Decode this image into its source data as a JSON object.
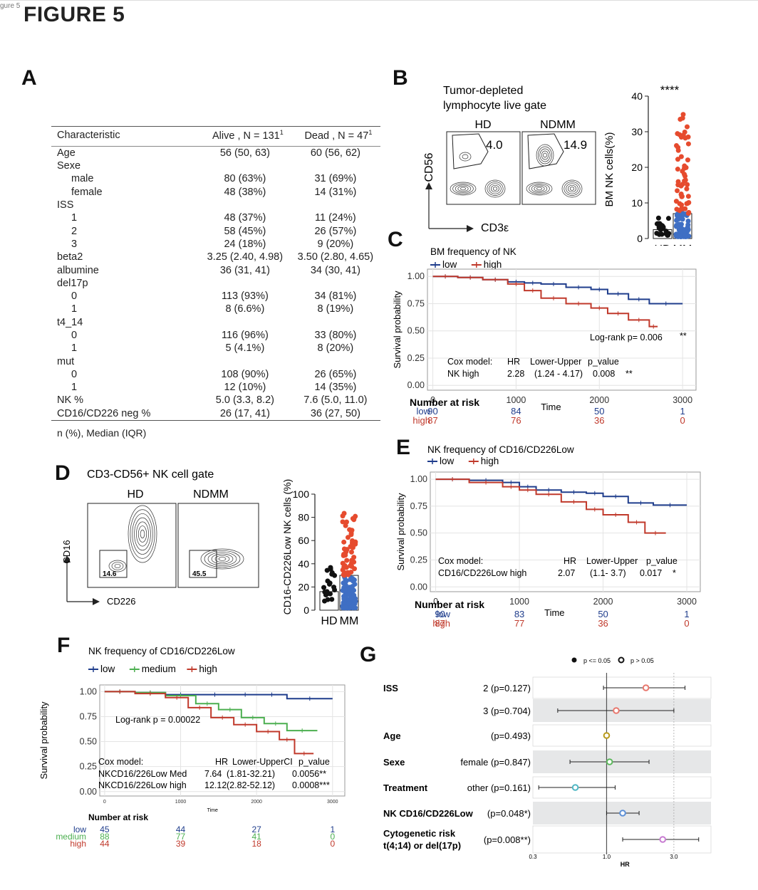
{
  "corner_label": "gure 5",
  "figure_title": "FIGURE 5",
  "panels": {
    "A": "A",
    "B": "B",
    "C": "C",
    "D": "D",
    "E": "E",
    "F": "F",
    "G": "G"
  },
  "table": {
    "headers": {
      "characteristic": "Characteristic",
      "alive": "Alive , N = 131",
      "dead": "Dead , N = 47",
      "sup": "1"
    },
    "rows": [
      {
        "label": "Age",
        "alive": "56 (50, 63)",
        "dead": "60 (56, 62)",
        "indent": false
      },
      {
        "label": "Sexe",
        "alive": "",
        "dead": "",
        "indent": false
      },
      {
        "label": "male",
        "alive": "80 (63%)",
        "dead": "31 (69%)",
        "indent": true
      },
      {
        "label": "female",
        "alive": "48 (38%)",
        "dead": "14 (31%)",
        "indent": true
      },
      {
        "label": "ISS",
        "alive": "",
        "dead": "",
        "indent": false
      },
      {
        "label": "1",
        "alive": "48 (37%)",
        "dead": "11 (24%)",
        "indent": true
      },
      {
        "label": "2",
        "alive": "58 (45%)",
        "dead": "26 (57%)",
        "indent": true
      },
      {
        "label": "3",
        "alive": "24 (18%)",
        "dead": "9 (20%)",
        "indent": true
      },
      {
        "label": "beta2",
        "alive": "3.25 (2.40, 4.98)",
        "dead": "3.50 (2.80, 4.65)",
        "indent": false
      },
      {
        "label": "albumine",
        "alive": "36 (31, 41)",
        "dead": "34 (30, 41)",
        "indent": false
      },
      {
        "label": "del17p",
        "alive": "",
        "dead": "",
        "indent": false
      },
      {
        "label": "0",
        "alive": "113 (93%)",
        "dead": "34 (81%)",
        "indent": true
      },
      {
        "label": "1",
        "alive": "8 (6.6%)",
        "dead": "8 (19%)",
        "indent": true
      },
      {
        "label": "t4_14",
        "alive": "",
        "dead": "",
        "indent": false
      },
      {
        "label": "0",
        "alive": "116 (96%)",
        "dead": "33 (80%)",
        "indent": true
      },
      {
        "label": "1",
        "alive": "5 (4.1%)",
        "dead": "8 (20%)",
        "indent": true
      },
      {
        "label": "mut",
        "alive": "",
        "dead": "",
        "indent": false
      },
      {
        "label": "0",
        "alive": "108 (90%)",
        "dead": "26 (65%)",
        "indent": true
      },
      {
        "label": "1",
        "alive": "12 (10%)",
        "dead": "14 (35%)",
        "indent": true
      },
      {
        "label": "NK %",
        "alive": "5.0 (3.3, 8.2)",
        "dead": "7.6 (5.0, 11.0)",
        "indent": false
      },
      {
        "label": "CD16/CD226 neg %",
        "alive": "26 (17, 41)",
        "dead": "36 (27, 50)",
        "indent": false
      }
    ],
    "footnote": "n (%), Median (IQR)"
  },
  "panelB": {
    "title_line1": "Tumor-depleted",
    "title_line2": "lymphocyte live gate",
    "hd_label": "HD",
    "ndmm_label": "NDMM",
    "hd_gate_value": "4.0",
    "ndmm_gate_value": "14.9",
    "yaxis": "CD56",
    "xaxis": "CD3ε",
    "dot_ylabel": "BM NK cells(%)",
    "significance": "****",
    "yticks": [
      "0",
      "10",
      "20",
      "30",
      "40"
    ],
    "groups": [
      "HD",
      "MM"
    ]
  },
  "panelC": {
    "title": "BM frequency of NK",
    "legend": [
      {
        "name": "low",
        "color": "#1f3d8c"
      },
      {
        "name": "high",
        "color": "#c0392b"
      }
    ],
    "ylabel": "Survival probability",
    "xlabel": "Time",
    "yticks": [
      "0.00",
      "0.25",
      "0.50",
      "0.75",
      "1.00"
    ],
    "xticks": [
      "0",
      "1000",
      "2000",
      "3000"
    ],
    "logrank": "Log-rank p= 0.006",
    "logrank_sig": "**",
    "cox_header": {
      "model": "Cox model:",
      "hr": "HR",
      "ci": "Lower-Upper",
      "p": "p_value"
    },
    "cox_row": {
      "label": "NK high",
      "hr": "2.28",
      "ci": "(1.24 - 4.17)",
      "p": "0.008",
      "sig": "**"
    },
    "risk_title": "Number at risk",
    "risk": [
      {
        "name": "low",
        "color": "#1f3d8c",
        "values": [
          "90",
          "84",
          "50",
          "1"
        ]
      },
      {
        "name": "high",
        "color": "#c0392b",
        "values": [
          "87",
          "76",
          "36",
          "0"
        ]
      }
    ]
  },
  "panelD": {
    "title": "CD3-CD56+ NK cell gate",
    "hd_label": "HD",
    "ndmm_label": "NDMM",
    "hd_gate_value": "14.6",
    "ndmm_gate_value": "45.5",
    "yaxis": "CD16",
    "xaxis": "CD226",
    "dot_ylabel": "CD16-CD226Low NK cells (%)",
    "yticks": [
      "0",
      "20",
      "40",
      "60",
      "80",
      "100"
    ],
    "groups": [
      "HD",
      "MM"
    ]
  },
  "panelE": {
    "title": "NK frequency of CD16/CD226Low",
    "legend": [
      {
        "name": "low",
        "color": "#1f3d8c"
      },
      {
        "name": "high",
        "color": "#c0392b"
      }
    ],
    "ylabel": "Survival probability",
    "xlabel": "Time",
    "yticks": [
      "0.00",
      "0.25",
      "0.50",
      "0.75",
      "1.00"
    ],
    "xticks": [
      "0",
      "1000",
      "2000",
      "3000"
    ],
    "cox_header": {
      "model": "Cox model:",
      "hr": "HR",
      "ci": "Lower-Upper",
      "p": "p_value"
    },
    "cox_row": {
      "label": "CD16/CD226Low high",
      "hr": "2.07",
      "ci": "(1.1- 3.7)",
      "p": "0.017",
      "sig": "*"
    },
    "risk_title": "Number at risk",
    "risk": [
      {
        "name": "low",
        "color": "#1f3d8c",
        "values": [
          "90",
          "83",
          "50",
          "1"
        ]
      },
      {
        "name": "high",
        "color": "#c0392b",
        "values": [
          "87",
          "77",
          "36",
          "0"
        ]
      }
    ]
  },
  "panelF": {
    "title": "NK frequency of CD16/CD226Low",
    "legend": [
      {
        "name": "low",
        "color": "#1f3d8c"
      },
      {
        "name": "medium",
        "color": "#4caf50"
      },
      {
        "name": "high",
        "color": "#c0392b"
      }
    ],
    "ylabel": "Survival probability",
    "xlabel": "Time",
    "yticks": [
      "0.00",
      "0.25",
      "0.50",
      "0.75",
      "1.00"
    ],
    "xticks": [
      "0",
      "1000",
      "2000",
      "3000"
    ],
    "logrank": "Log-rank p = 0.00022",
    "cox_header": {
      "model": "Cox model:",
      "hr": "HR",
      "ci": "Lower-UpperCI",
      "p": "p_value"
    },
    "cox_rows": [
      {
        "label": "NKCD16/226Low Med",
        "hr": "7.64",
        "ci": "(1.81-32.21)",
        "p": "0.0056**"
      },
      {
        "label": "NKCD16/226Low high",
        "hr": "12.12",
        "ci": "(2.82-52.12)",
        "p": "0.0008***"
      }
    ],
    "risk_title": "Number at risk",
    "risk": [
      {
        "name": "low",
        "color": "#1f3d8c",
        "values": [
          "45",
          "44",
          "27",
          "1"
        ]
      },
      {
        "name": "medium",
        "color": "#4caf50",
        "values": [
          "88",
          "77",
          "41",
          "0"
        ]
      },
      {
        "name": "high",
        "color": "#c0392b",
        "values": [
          "44",
          "39",
          "18",
          "0"
        ]
      }
    ]
  },
  "panelG": {
    "legend_sig": "p <= 0.05",
    "legend_ns": "p > 0.05",
    "xlabel": "HR",
    "xticks": [
      "0.3",
      "1.0",
      "3.0"
    ],
    "rows": [
      {
        "group": "ISS",
        "level": "2 (p=0.127)",
        "hr": 1.9,
        "lo": 0.95,
        "hi": 3.6,
        "color": "#e8776d",
        "shade": false
      },
      {
        "group": "",
        "level": "3 (p=0.704)",
        "hr": 1.17,
        "lo": 0.45,
        "hi": 3.0,
        "color": "#e8776d",
        "shade": true
      },
      {
        "group": "Age",
        "level": "(p=0.493)",
        "hr": 1.0,
        "lo": 0.98,
        "hi": 1.03,
        "color": "#b89a1b",
        "shade": false
      },
      {
        "group": "Sexe",
        "level": "female (p=0.847)",
        "hr": 1.05,
        "lo": 0.55,
        "hi": 2.0,
        "color": "#5cb85c",
        "shade": true
      },
      {
        "group": "Treatment",
        "level": "other (p=0.161)",
        "hr": 0.6,
        "lo": 0.33,
        "hi": 1.15,
        "color": "#4fb7c4",
        "shade": false
      },
      {
        "group": "NK CD16/CD226Low",
        "level": "(p=0.048*)",
        "hr": 1.3,
        "lo": 1.0,
        "hi": 1.7,
        "color": "#5b8fd6",
        "shade": true
      },
      {
        "group": "Cytogenetic risk\nt(4;14) or del(17p)",
        "level": "(p=0.008**)",
        "hr": 2.5,
        "lo": 1.3,
        "hi": 4.5,
        "color": "#c77bd1",
        "shade": false
      }
    ]
  },
  "chart_data": [
    {
      "type": "line",
      "title": "BM frequency of NK",
      "xlabel": "Time",
      "ylabel": "Survival probability",
      "xlim": [
        0,
        3000
      ],
      "ylim": [
        0,
        1
      ],
      "series": [
        {
          "name": "low",
          "x": [
            0,
            300,
            600,
            900,
            1100,
            1300,
            1600,
            1900,
            2100,
            2350,
            2600,
            3000
          ],
          "values": [
            1,
            0.99,
            0.97,
            0.95,
            0.94,
            0.93,
            0.9,
            0.88,
            0.84,
            0.79,
            0.75,
            0.75
          ]
        },
        {
          "name": "high",
          "x": [
            0,
            300,
            600,
            900,
            1100,
            1300,
            1600,
            1900,
            2100,
            2350,
            2600,
            2700
          ],
          "values": [
            1,
            0.99,
            0.97,
            0.93,
            0.87,
            0.8,
            0.75,
            0.71,
            0.66,
            0.6,
            0.54,
            0.54
          ]
        }
      ]
    },
    {
      "type": "line",
      "title": "NK frequency of CD16/CD226Low",
      "xlabel": "Time",
      "ylabel": "Survival probability",
      "xlim": [
        0,
        3000
      ],
      "ylim": [
        0,
        1
      ],
      "series": [
        {
          "name": "low",
          "x": [
            0,
            400,
            800,
            1000,
            1200,
            1500,
            1800,
            2000,
            2300,
            2600,
            3000
          ],
          "values": [
            1,
            0.99,
            0.97,
            0.93,
            0.9,
            0.88,
            0.87,
            0.84,
            0.78,
            0.76,
            0.76
          ]
        },
        {
          "name": "high",
          "x": [
            0,
            400,
            800,
            1000,
            1200,
            1500,
            1800,
            2000,
            2300,
            2500,
            2750
          ],
          "values": [
            1,
            0.97,
            0.93,
            0.9,
            0.86,
            0.79,
            0.72,
            0.67,
            0.6,
            0.5,
            0.5
          ]
        }
      ]
    },
    {
      "type": "line",
      "title": "NK frequency of CD16/CD226Low",
      "xlabel": "Time",
      "ylabel": "Survival probability",
      "xlim": [
        0,
        3000
      ],
      "ylim": [
        0,
        1
      ],
      "series": [
        {
          "name": "low",
          "x": [
            0,
            400,
            800,
            1200,
            1700,
            2000,
            2400,
            3000
          ],
          "values": [
            1,
            0.99,
            0.97,
            0.97,
            0.97,
            0.97,
            0.93,
            0.93
          ]
        },
        {
          "name": "medium",
          "x": [
            0,
            400,
            800,
            1200,
            1500,
            1800,
            2100,
            2400,
            2800
          ],
          "values": [
            1,
            0.99,
            0.96,
            0.88,
            0.82,
            0.74,
            0.68,
            0.61,
            0.61
          ]
        },
        {
          "name": "high",
          "x": [
            0,
            400,
            800,
            1100,
            1400,
            1700,
            2000,
            2300,
            2500,
            2750
          ],
          "values": [
            1,
            0.98,
            0.94,
            0.84,
            0.74,
            0.67,
            0.6,
            0.52,
            0.38,
            0.38
          ]
        }
      ]
    }
  ]
}
